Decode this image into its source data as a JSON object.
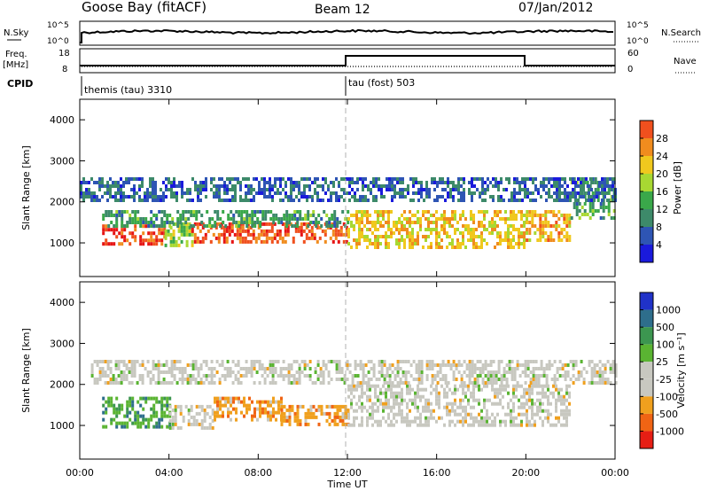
{
  "header": {
    "station": "Goose Bay (fitACF)",
    "beam": "Beam 12",
    "date": "07/Jan/2012"
  },
  "noise_panel": {
    "left_label": "N.Sky",
    "right_label": "N.Search",
    "left_ticks": [
      "10^5",
      "10^0"
    ],
    "right_ticks": [
      "10^5",
      "10^0"
    ]
  },
  "freq_panel": {
    "left_label_line1": "Freq.",
    "left_label_line2": "[MHz]",
    "right_label": "Nave",
    "left_ticks": [
      "18",
      "8"
    ],
    "right_ticks": [
      "60",
      "0"
    ]
  },
  "cpid_panel": {
    "label": "CPID",
    "modes": [
      {
        "name": "themis (tau) 3310",
        "start_hour": 0
      },
      {
        "name": "tau (fost) 503",
        "start_hour": 12
      }
    ]
  },
  "colors": {
    "power": [
      "#1a1adc",
      "#2e55b4",
      "#3d8a6a",
      "#3aa84a",
      "#a8d832",
      "#f0c81e",
      "#f08c1e",
      "#f0501e",
      "#e61414"
    ],
    "velocity": [
      "#2032c8",
      "#2e6e8c",
      "#3c9650",
      "#5ab432",
      "#c8c8c0",
      "#c8c8c0",
      "#f0a01e",
      "#f06414",
      "#e61e14"
    ],
    "frame": "#000000"
  },
  "chart_data": [
    {
      "type": "heatmap",
      "name": "power",
      "ylabel": "Slant Range [km]",
      "xlim": [
        0,
        24
      ],
      "ylim": [
        180,
        4500
      ],
      "yticks": [
        "1000",
        "2000",
        "3000",
        "4000"
      ],
      "colorbar": {
        "label": "Power [dB]",
        "ticks": [
          "4",
          "8",
          "12",
          "16",
          "20",
          "24",
          "28"
        ],
        "range": [
          0,
          30
        ]
      },
      "bands": [
        {
          "hours": [
            1.0,
            3.8
          ],
          "range_km": [
            950,
            1450
          ],
          "value": 26
        },
        {
          "hours": [
            3.8,
            5.0
          ],
          "range_km": [
            900,
            1500
          ],
          "value": 14
        },
        {
          "hours": [
            5.0,
            12.0
          ],
          "range_km": [
            1000,
            1500
          ],
          "value": 25
        },
        {
          "hours": [
            1.0,
            12.0
          ],
          "range_km": [
            1450,
            1800
          ],
          "value": 10
        },
        {
          "hours": [
            12.0,
            20.0
          ],
          "range_km": [
            900,
            1800
          ],
          "value": 18
        },
        {
          "hours": [
            20.0,
            22.0
          ],
          "range_km": [
            1100,
            1800
          ],
          "value": 20
        },
        {
          "hours": [
            22.0,
            24.0
          ],
          "range_km": [
            1600,
            2600
          ],
          "value": 10
        },
        {
          "hours": [
            0.0,
            24.0
          ],
          "range_km": [
            2000,
            2600
          ],
          "value": 6
        }
      ]
    },
    {
      "type": "heatmap",
      "name": "velocity",
      "xlabel": "Time UT",
      "ylabel": "Slant Range [km]",
      "xlim": [
        0,
        24
      ],
      "ylim": [
        180,
        4500
      ],
      "xticks": [
        "00:00",
        "04:00",
        "08:00",
        "12:00",
        "16:00",
        "20:00",
        "00:00"
      ],
      "yticks": [
        "1000",
        "2000",
        "3000",
        "4000"
      ],
      "colorbar": {
        "label": "Velocity [m s⁻¹]",
        "ticks": [
          "1000",
          "500",
          "100",
          "25",
          "-25",
          "-100",
          "-500",
          "-1000"
        ]
      },
      "bands": [
        {
          "hours": [
            1.0,
            4.0
          ],
          "range_km": [
            950,
            1700
          ],
          "value": 100
        },
        {
          "hours": [
            4.0,
            6.0
          ],
          "range_km": [
            900,
            1500
          ],
          "value": 0
        },
        {
          "hours": [
            6.0,
            9.0
          ],
          "range_km": [
            1100,
            1700
          ],
          "value": -100
        },
        {
          "hours": [
            9.0,
            12.0
          ],
          "range_km": [
            1000,
            1500
          ],
          "value": -100
        },
        {
          "hours": [
            12.0,
            22.0
          ],
          "range_km": [
            1000,
            2000
          ],
          "value": 0
        },
        {
          "hours": [
            0.5,
            24.0
          ],
          "range_km": [
            2000,
            2600
          ],
          "value": 0
        }
      ]
    }
  ]
}
